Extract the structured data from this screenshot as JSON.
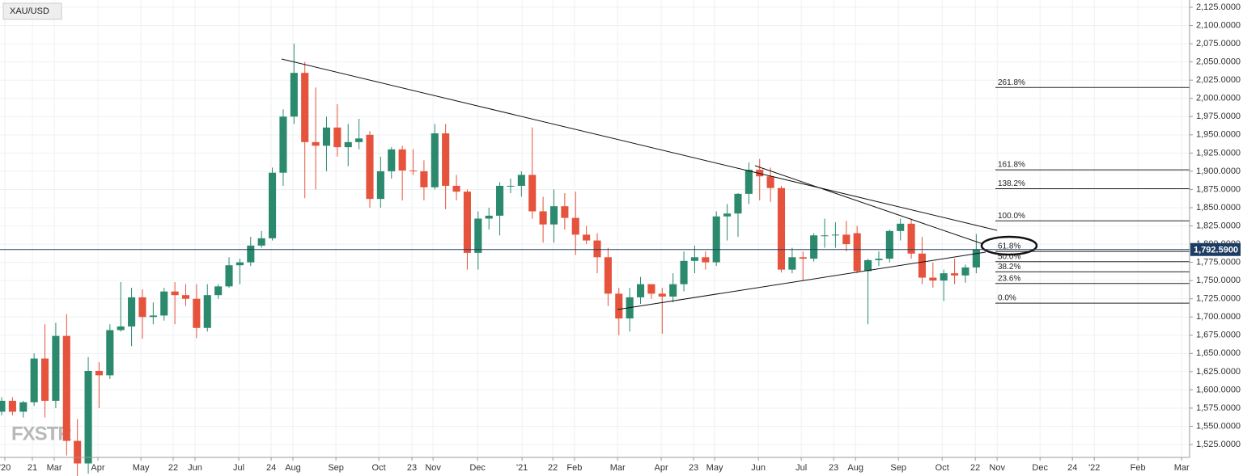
{
  "chart_data": {
    "type": "candlestick",
    "symbol": "XAU/USD",
    "watermark": "FXSTR",
    "up_color": "#2b8a6e",
    "down_color": "#e5533d",
    "x": [
      0,
      1,
      2,
      3,
      4,
      5,
      6,
      7,
      8,
      9,
      10,
      11,
      12,
      13,
      14,
      15,
      16,
      17,
      18,
      19,
      20,
      21,
      22,
      23,
      24,
      25,
      26,
      27,
      28,
      29,
      30,
      31,
      32,
      33,
      34,
      35,
      36,
      37,
      38,
      39,
      40,
      41,
      42,
      43,
      44,
      45,
      46,
      47,
      48,
      49,
      50,
      51,
      52,
      53,
      54,
      55,
      56,
      57,
      58,
      59,
      60,
      61,
      62,
      63,
      64,
      65,
      66,
      67,
      68,
      69,
      70,
      71,
      72,
      73,
      74,
      75,
      76,
      77,
      78,
      79,
      80,
      81,
      82,
      83,
      84,
      85,
      86,
      87,
      88,
      89,
      90
    ],
    "open": [
      1570,
      1585,
      1570,
      1583,
      1643,
      1585,
      1674,
      1530,
      1499,
      1626,
      1620,
      1682,
      1687,
      1727,
      1700,
      1702,
      1735,
      1730,
      1725,
      1685,
      1730,
      1742,
      1771,
      1775,
      1798,
      1808,
      1898,
      1975,
      2035,
      1940,
      1935,
      1960,
      1933,
      1940,
      1950,
      1862,
      1900,
      1930,
      1901,
      1900,
      1878,
      1952,
      1880,
      1872,
      1788,
      1835,
      1839,
      1880,
      1880,
      1895,
      1845,
      1827,
      1852,
      1836,
      1813,
      1805,
      1782,
      1732,
      1698,
      1727,
      1745,
      1732,
      1728,
      1745,
      1777,
      1782,
      1775,
      1838,
      1842,
      1869,
      1902,
      1893,
      1877,
      1765,
      1782,
      1780,
      1812,
      1812,
      1813,
      1815,
      1763,
      1778,
      1780,
      1818,
      1828,
      1787,
      1754,
      1750,
      1760,
      1757,
      1768
    ],
    "high": [
      1590,
      1590,
      1585,
      1650,
      1690,
      1692,
      1704,
      1560,
      1645,
      1638,
      1690,
      1748,
      1740,
      1738,
      1720,
      1740,
      1748,
      1745,
      1745,
      1745,
      1745,
      1782,
      1780,
      1810,
      1818,
      1905,
      1985,
      2075,
      2050,
      2015,
      1975,
      1992,
      1965,
      1972,
      1955,
      1920,
      1933,
      1935,
      1930,
      1915,
      1965,
      1965,
      1895,
      1875,
      1845,
      1850,
      1885,
      1890,
      1900,
      1960,
      1865,
      1875,
      1870,
      1872,
      1825,
      1815,
      1795,
      1740,
      1740,
      1755,
      1745,
      1740,
      1760,
      1790,
      1798,
      1790,
      1845,
      1855,
      1870,
      1912,
      1917,
      1905,
      1880,
      1795,
      1790,
      1815,
      1835,
      1830,
      1832,
      1825,
      1780,
      1790,
      1820,
      1835,
      1835,
      1810,
      1775,
      1765,
      1780,
      1772,
      1814
    ],
    "low": [
      1565,
      1565,
      1562,
      1578,
      1562,
      1575,
      1510,
      1451,
      1485,
      1575,
      1615,
      1680,
      1660,
      1670,
      1690,
      1695,
      1690,
      1715,
      1671,
      1680,
      1725,
      1740,
      1745,
      1770,
      1795,
      1805,
      1880,
      1965,
      1863,
      1875,
      1900,
      1920,
      1907,
      1930,
      1850,
      1850,
      1890,
      1860,
      1895,
      1860,
      1875,
      1848,
      1860,
      1765,
      1765,
      1820,
      1812,
      1870,
      1865,
      1835,
      1802,
      1802,
      1820,
      1785,
      1800,
      1760,
      1715,
      1675,
      1680,
      1718,
      1725,
      1677,
      1720,
      1735,
      1760,
      1765,
      1770,
      1805,
      1810,
      1855,
      1860,
      1858,
      1761,
      1760,
      1750,
      1776,
      1795,
      1795,
      1790,
      1760,
      1690,
      1770,
      1775,
      1805,
      1780,
      1745,
      1740,
      1722,
      1745,
      1747,
      1760
    ],
    "close": [
      1585,
      1570,
      1583,
      1643,
      1585,
      1674,
      1530,
      1499,
      1626,
      1620,
      1682,
      1687,
      1727,
      1700,
      1702,
      1735,
      1730,
      1725,
      1685,
      1730,
      1742,
      1771,
      1775,
      1798,
      1808,
      1898,
      1975,
      2035,
      1940,
      1935,
      1960,
      1933,
      1940,
      1945,
      1862,
      1900,
      1930,
      1901,
      1900,
      1878,
      1952,
      1880,
      1872,
      1788,
      1835,
      1839,
      1880,
      1880,
      1895,
      1845,
      1827,
      1852,
      1836,
      1813,
      1805,
      1782,
      1732,
      1698,
      1727,
      1745,
      1732,
      1728,
      1745,
      1777,
      1782,
      1775,
      1838,
      1842,
      1869,
      1902,
      1893,
      1877,
      1765,
      1782,
      1780,
      1812,
      1812,
      1813,
      1800,
      1763,
      1778,
      1780,
      1818,
      1828,
      1787,
      1754,
      1750,
      1760,
      1757,
      1768,
      1792.59
    ],
    "last_price": {
      "value": 1792.59,
      "label": "1,792.5900"
    },
    "fib_levels": [
      {
        "label": "261.8%",
        "value": 2015
      },
      {
        "label": "161.8%",
        "value": 1902
      },
      {
        "label": "138.2%",
        "value": 1876
      },
      {
        "label": "100.0%",
        "value": 1832
      },
      {
        "label": "61.8%",
        "value": 1790
      },
      {
        "label": "50.0%",
        "value": 1776
      },
      {
        "label": "38.2%",
        "value": 1762
      },
      {
        "label": "23.6%",
        "value": 1746
      },
      {
        "label": "0.0%",
        "value": 1719
      }
    ],
    "xlim": [
      -0.15,
      109.7
    ],
    "xticks": [
      {
        "value": 0.3,
        "label": "'20"
      },
      {
        "value": 2.84,
        "label": "21"
      },
      {
        "value": 4.86,
        "label": "Mar"
      },
      {
        "value": 8.89,
        "label": "Apr"
      },
      {
        "value": 12.86,
        "label": "May"
      },
      {
        "value": 15.84,
        "label": "22"
      },
      {
        "value": 17.86,
        "label": "Jun"
      },
      {
        "value": 21.9,
        "label": "Jul"
      },
      {
        "value": 24.89,
        "label": "24"
      },
      {
        "value": 26.9,
        "label": "Aug"
      },
      {
        "value": 30.87,
        "label": "Sep"
      },
      {
        "value": 34.83,
        "label": "Oct"
      },
      {
        "value": 37.89,
        "label": "23"
      },
      {
        "value": 39.84,
        "label": "Nov"
      },
      {
        "value": 43.95,
        "label": "Dec"
      },
      {
        "value": 48.06,
        "label": "'21"
      },
      {
        "value": 50.9,
        "label": "22"
      },
      {
        "value": 52.9,
        "label": "Feb"
      },
      {
        "value": 56.88,
        "label": "Mar"
      },
      {
        "value": 60.91,
        "label": "Apr"
      },
      {
        "value": 63.9,
        "label": "23"
      },
      {
        "value": 65.84,
        "label": "May"
      },
      {
        "value": 69.88,
        "label": "Jun"
      },
      {
        "value": 73.84,
        "label": "Jul"
      },
      {
        "value": 76.83,
        "label": "23"
      },
      {
        "value": 78.85,
        "label": "Aug"
      },
      {
        "value": 82.81,
        "label": "Sep"
      },
      {
        "value": 86.85,
        "label": "Oct"
      },
      {
        "value": 89.91,
        "label": "22"
      },
      {
        "value": 91.93,
        "label": "Nov"
      },
      {
        "value": 95.89,
        "label": "Dec"
      },
      {
        "value": 98.88,
        "label": "24"
      },
      {
        "value": 100.9,
        "label": "'22"
      },
      {
        "value": 104.93,
        "label": "Feb"
      },
      {
        "value": 108.97,
        "label": "Mar"
      }
    ],
    "ylim": [
      1507.3,
      2135
    ],
    "yticks": [
      {
        "value": 2125,
        "label": "2,125.0000"
      },
      {
        "value": 2100,
        "label": "2,100.0000"
      },
      {
        "value": 2075,
        "label": "2,075.0000"
      },
      {
        "value": 2050,
        "label": "2,050.0000"
      },
      {
        "value": 2025,
        "label": "2,025.0000"
      },
      {
        "value": 2000,
        "label": "2,000.0000"
      },
      {
        "value": 1975,
        "label": "1,975.0000"
      },
      {
        "value": 1950,
        "label": "1,950.0000"
      },
      {
        "value": 1925,
        "label": "1,925.0000"
      },
      {
        "value": 1900,
        "label": "1,900.0000"
      },
      {
        "value": 1875,
        "label": "1,875.0000"
      },
      {
        "value": 1850,
        "label": "1,850.0000"
      },
      {
        "value": 1825,
        "label": "1,825.0000"
      },
      {
        "value": 1800,
        "label": "1,800.0000"
      },
      {
        "value": 1775,
        "label": "1,775.0000"
      },
      {
        "value": 1750,
        "label": "1,750.0000"
      },
      {
        "value": 1725,
        "label": "1,725.0000"
      },
      {
        "value": 1700,
        "label": "1,700.0000"
      },
      {
        "value": 1675,
        "label": "1,675.0000"
      },
      {
        "value": 1650,
        "label": "1,650.0000"
      },
      {
        "value": 1625,
        "label": "1,625.0000"
      },
      {
        "value": 1600,
        "label": "1,600.0000"
      },
      {
        "value": 1575,
        "label": "1,575.0000"
      },
      {
        "value": 1550,
        "label": "1,550.0000"
      },
      {
        "value": 1525,
        "label": "1,525.0000"
      }
    ],
    "grid": true
  }
}
